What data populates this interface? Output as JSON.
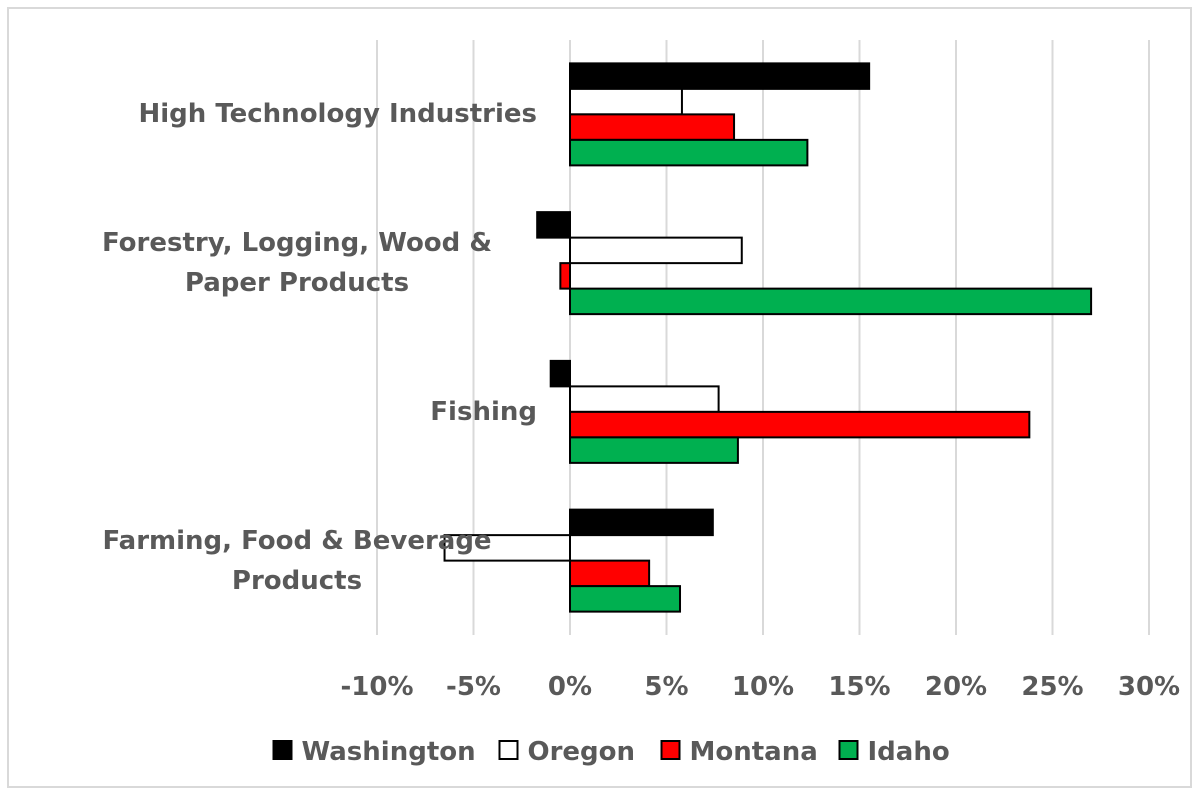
{
  "chart_data": {
    "type": "bar",
    "orientation": "horizontal",
    "categories": [
      "High Technology Industries",
      "Forestry, Logging, Wood & Paper Products",
      "Fishing",
      "Farming, Food & Beverage Products"
    ],
    "series": [
      {
        "name": "Washington",
        "color": "#000000",
        "values": [
          15.5,
          -1.7,
          -1.0,
          7.4
        ]
      },
      {
        "name": "Oregon",
        "color": "#ffffff",
        "values": [
          5.8,
          8.9,
          7.7,
          -6.5
        ]
      },
      {
        "name": "Montana",
        "color": "#ff0000",
        "values": [
          8.5,
          -0.5,
          23.8,
          4.1
        ]
      },
      {
        "name": "Idaho",
        "color": "#00b050",
        "values": [
          12.3,
          27.0,
          8.7,
          5.7
        ]
      }
    ],
    "xlim": [
      -10,
      30
    ],
    "xticks": [
      {
        "value": -10,
        "label": "-10%"
      },
      {
        "value": -5,
        "label": "-5%"
      },
      {
        "value": 0,
        "label": "0%"
      },
      {
        "value": 5,
        "label": "5%"
      },
      {
        "value": 10,
        "label": "10%"
      },
      {
        "value": 15,
        "label": "15%"
      },
      {
        "value": 20,
        "label": "20%"
      },
      {
        "value": 25,
        "label": "25%"
      },
      {
        "value": 30,
        "label": "30%"
      }
    ],
    "grid": true,
    "legend": "bottom"
  }
}
